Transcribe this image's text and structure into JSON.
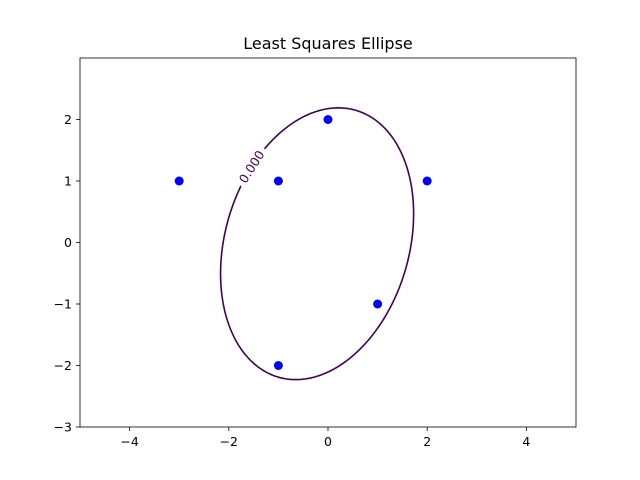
{
  "chart_data": {
    "type": "scatter",
    "title": "Least Squares Ellipse",
    "xlabel": "",
    "ylabel": "",
    "xlim": [
      -5,
      5
    ],
    "ylim": [
      -3,
      3
    ],
    "x_ticks": [
      -4,
      -2,
      0,
      2,
      4
    ],
    "x_tick_labels": [
      "−4",
      "−2",
      "0",
      "2",
      "4"
    ],
    "y_ticks": [
      -3,
      -2,
      -1,
      0,
      1,
      2
    ],
    "y_tick_labels": [
      "−3",
      "−2",
      "−1",
      "0",
      "1",
      "2"
    ],
    "grid": false,
    "legend": "none",
    "points": {
      "color": "#0000ff",
      "x": [
        -3,
        -1,
        0,
        2,
        1,
        -1
      ],
      "y": [
        1,
        1,
        2,
        1,
        -1,
        -2
      ]
    },
    "ellipse": {
      "color": "#440154",
      "level_label": "0.000",
      "center": [
        -0.22,
        -0.02
      ],
      "semi_major": 2.33,
      "semi_minor": 1.8,
      "angle_deg": 60
    }
  }
}
